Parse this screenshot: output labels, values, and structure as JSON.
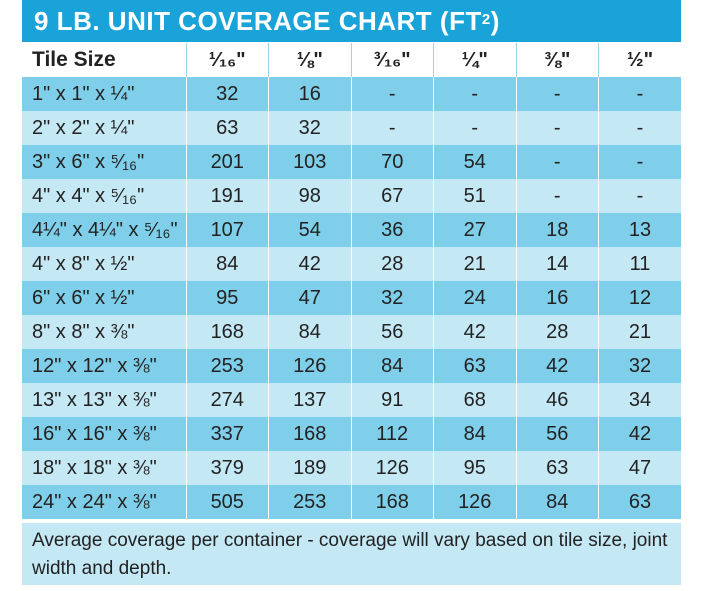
{
  "title": {
    "main": "9 LB. UNIT COVERAGE CHART (FT",
    "sup": "2",
    "close": ")"
  },
  "table": {
    "headers": [
      "Tile Size",
      "¹⁄₁₆\"",
      "⅛\"",
      "³⁄₁₆\"",
      "¼\"",
      "⅜\"",
      "½\""
    ],
    "rows": [
      [
        "1\" x 1\" x ¼\"",
        "32",
        "16",
        "-",
        "-",
        "-",
        "-"
      ],
      [
        "2\" x 2\" x ¼\"",
        "63",
        "32",
        "-",
        "-",
        "-",
        "-"
      ],
      [
        "3\" x 6\" x ⁵⁄₁₆\"",
        "201",
        "103",
        "70",
        "54",
        "-",
        "-"
      ],
      [
        "4\" x 4\" x ⁵⁄₁₆\"",
        "191",
        "98",
        "67",
        "51",
        "-",
        "-"
      ],
      [
        "4¼\" x 4¼\" x ⁵⁄₁₆\"",
        "107",
        "54",
        "36",
        "27",
        "18",
        "13"
      ],
      [
        "4\" x 8\" x ½\"",
        "84",
        "42",
        "28",
        "21",
        "14",
        "11"
      ],
      [
        "6\" x 6\" x ½\"",
        "95",
        "47",
        "32",
        "24",
        "16",
        "12"
      ],
      [
        "8\" x 8\" x ⅜\"",
        "168",
        "84",
        "56",
        "42",
        "28",
        "21"
      ],
      [
        "12\" x 12\" x ⅜\"",
        "253",
        "126",
        "84",
        "63",
        "42",
        "32"
      ],
      [
        "13\" x 13\" x ⅜\"",
        "274",
        "137",
        "91",
        "68",
        "46",
        "34"
      ],
      [
        "16\" x 16\" x ⅜\"",
        "337",
        "168",
        "112",
        "84",
        "56",
        "42"
      ],
      [
        "18\" x 18\" x ⅜\"",
        "379",
        "189",
        "126",
        "95",
        "63",
        "47"
      ],
      [
        "24\" x 24\" x ⅜\"",
        "505",
        "253",
        "168",
        "126",
        "84",
        "63"
      ]
    ]
  },
  "footnote": "Average coverage per container - coverage will vary based on tile size, joint width and depth.",
  "colors": {
    "title_bg": "#1aa3d9",
    "row_dark": "#7fcfeb",
    "row_light": "#c5e8f5"
  }
}
